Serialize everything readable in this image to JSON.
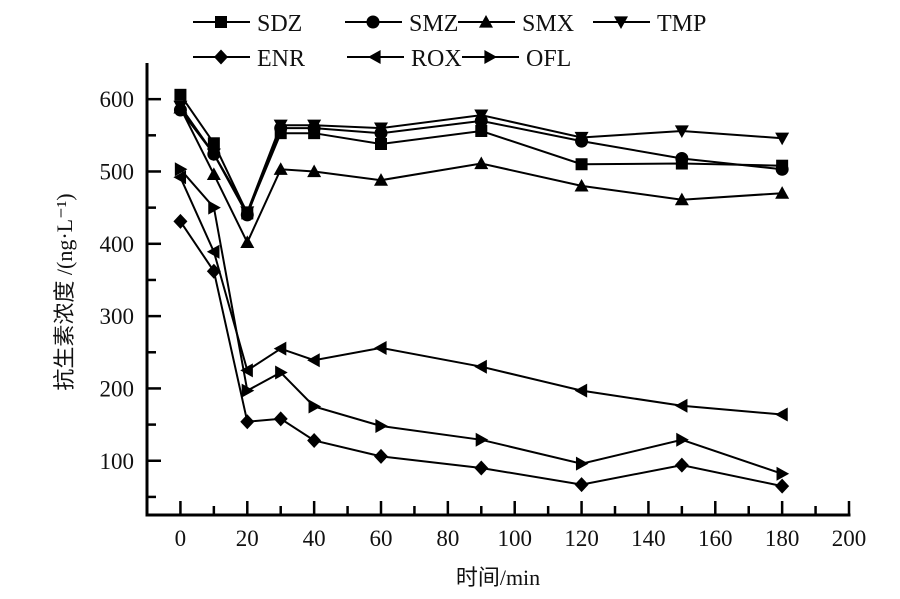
{
  "chart_data": {
    "type": "line",
    "title": "",
    "xlabel": "时间/min",
    "ylabel": "抗生素浓度 /(ng·L⁻¹)",
    "xlim": [
      -10,
      200
    ],
    "ylim": [
      25,
      650
    ],
    "xticks": [
      0,
      20,
      40,
      60,
      80,
      100,
      120,
      140,
      160,
      180,
      200
    ],
    "yticks": [
      100,
      200,
      300,
      400,
      500,
      600
    ],
    "xtick_labels": [
      "0",
      "20",
      "40",
      "60",
      "80",
      "100",
      "120",
      "140",
      "160",
      "180",
      "200"
    ],
    "ytick_labels": [
      "100",
      "200",
      "300",
      "400",
      "500",
      "600"
    ],
    "grid": false,
    "legend_position": "top",
    "x": [
      0,
      10,
      20,
      30,
      40,
      60,
      90,
      120,
      150,
      180
    ],
    "series": [
      {
        "name": "SDZ",
        "marker": "square",
        "values": [
          606,
          539,
          442,
          553,
          553,
          538,
          556,
          510,
          511,
          508
        ]
      },
      {
        "name": "SMZ",
        "marker": "circle",
        "values": [
          585,
          524,
          440,
          560,
          560,
          553,
          570,
          542,
          518,
          503
        ]
      },
      {
        "name": "SMX",
        "marker": "triangle-up",
        "values": [
          588,
          496,
          402,
          503,
          500,
          488,
          511,
          480,
          461,
          470
        ]
      },
      {
        "name": "TMP",
        "marker": "triangle-down",
        "values": [
          590,
          524,
          444,
          564,
          564,
          560,
          578,
          547,
          556,
          546
        ]
      },
      {
        "name": "ENR",
        "marker": "diamond",
        "values": [
          431,
          362,
          154,
          158,
          128,
          106,
          90,
          67,
          94,
          65
        ]
      },
      {
        "name": "ROX",
        "marker": "triangle-left",
        "values": [
          492,
          389,
          225,
          255,
          239,
          256,
          230,
          197,
          176,
          164
        ]
      },
      {
        "name": "OFL",
        "marker": "triangle-right",
        "values": [
          503,
          450,
          197,
          222,
          175,
          148,
          129,
          96,
          129,
          82
        ]
      }
    ]
  }
}
